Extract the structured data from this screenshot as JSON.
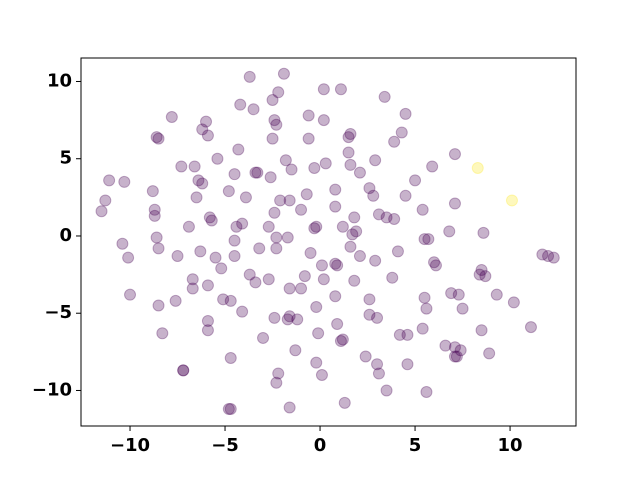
{
  "chart_data": {
    "type": "scatter",
    "xlim": [
      -12.58,
      13.47
    ],
    "ylim": [
      -12.3,
      11.52
    ],
    "xticks": [
      {
        "value": -10,
        "label": "−10"
      },
      {
        "value": -5,
        "label": "−5"
      },
      0,
      5,
      10
    ],
    "yticks": [
      {
        "value": -10,
        "label": "−10"
      },
      {
        "value": -5,
        "label": "−5"
      },
      0,
      5,
      10
    ],
    "opacity": 0.3,
    "series": [
      {
        "color": "#440154",
        "x": [
          -3.7,
          -1.9,
          -2.2,
          -4.2,
          -3.5,
          -2.5,
          0.2,
          1.1,
          3.4,
          -7.8,
          -6.0,
          -2.4,
          -2.3,
          -0.6,
          0.2,
          4.5,
          -6.2,
          -5.9,
          -8.6,
          -8.5,
          -2.5,
          -0.6,
          1.5,
          1.6,
          4.3,
          3.9,
          -4.3,
          1.5,
          7.1,
          -5.4,
          -1.8,
          2.9,
          5.9,
          0.3,
          -7.3,
          -6.6,
          -1.5,
          1.6,
          2.1,
          -0.3,
          -4.5,
          -3.4,
          -3.3,
          -11.1,
          -10.3,
          -6.4,
          -6.2,
          -2.6,
          5.0,
          2.6,
          -8.8,
          -4.8,
          0.8,
          2.8,
          -6.5,
          -2.1,
          -1.6,
          -0.7,
          4.5,
          -11.3,
          -3.9,
          7.1,
          0.8,
          -8.7,
          -8.7,
          -11.5,
          -2.4,
          -1.0,
          3.1,
          -5.8,
          -5.7,
          3.5,
          3.9,
          5.4,
          1.8,
          -4.1,
          -6.9,
          -4.4,
          -2.7,
          -0.3,
          -0.2,
          1.2,
          1.7,
          1.9,
          6.8,
          8.6,
          -8.6,
          -4.5,
          -2.3,
          -1.7,
          5.5,
          5.7,
          -10.4,
          -8.5,
          -6.3,
          -3.2,
          -2.3,
          -0.5,
          1.6,
          0.8,
          0.9,
          4.1,
          -10.1,
          -7.5,
          -5.5,
          -4.5,
          2.1,
          2.9,
          6.0,
          6.1,
          11.7,
          12.0,
          12.3,
          0.1,
          -5.2,
          -3.7,
          -6.7,
          0.2,
          1.8,
          -2.7,
          -0.8,
          -3.4,
          3.8,
          8.5,
          8.7,
          8.4,
          -5.9,
          -6.7,
          -1.6,
          -1.0,
          -10.0,
          0.8,
          6.9,
          7.3,
          9.3,
          -7.6,
          -5.1,
          -4.7,
          2.6,
          5.5,
          -8.5,
          -0.2,
          5.6,
          7.5,
          10.2,
          -4.1,
          2.6,
          3.0,
          -2.4,
          -1.6,
          -1.7,
          -1.2,
          -5.9,
          0.9,
          -8.3,
          -5.9,
          -0.1,
          -3.0,
          1.2,
          1.1,
          4.2,
          4.6,
          5.4,
          8.5,
          11.1,
          6.6,
          7.1,
          7.4,
          7.1,
          7.2,
          -1.3,
          8.9,
          2.4,
          -7.2,
          -7.2,
          -4.7,
          -0.2,
          3.0,
          4.6,
          -2.2,
          0.1,
          3.1,
          -2.3,
          3.5,
          5.6,
          1.3,
          -4.8,
          -4.7,
          -1.6
        ],
        "values": [
          10.3,
          10.5,
          9.3,
          8.5,
          8.2,
          8.8,
          9.5,
          9.5,
          9.0,
          7.7,
          7.4,
          7.5,
          7.2,
          7.8,
          7.5,
          7.9,
          6.9,
          6.5,
          6.4,
          6.3,
          6.3,
          6.3,
          6.4,
          6.6,
          6.7,
          6.1,
          5.6,
          5.4,
          5.3,
          5.0,
          4.9,
          4.9,
          4.5,
          4.7,
          4.5,
          4.5,
          4.3,
          4.6,
          4.1,
          4.4,
          4.0,
          4.1,
          4.1,
          3.6,
          3.5,
          3.6,
          3.4,
          3.8,
          3.6,
          3.1,
          2.9,
          2.9,
          3.0,
          2.6,
          2.5,
          2.3,
          2.3,
          2.7,
          2.6,
          2.3,
          2.5,
          2.1,
          1.9,
          1.7,
          1.3,
          1.6,
          1.5,
          1.7,
          1.4,
          1.2,
          1.0,
          1.2,
          1.1,
          1.7,
          1.2,
          0.8,
          0.6,
          0.6,
          0.6,
          0.5,
          0.6,
          0.6,
          0.1,
          0.3,
          0.3,
          0.2,
          -0.1,
          -0.3,
          -0.1,
          -0.1,
          -0.2,
          -0.2,
          -0.5,
          -0.8,
          -1.0,
          -0.8,
          -0.8,
          -1.1,
          -0.7,
          -1.8,
          -1.9,
          -1.0,
          -1.4,
          -1.3,
          -1.4,
          -1.3,
          -1.3,
          -1.6,
          -1.7,
          -1.9,
          -1.2,
          -1.3,
          -1.4,
          -1.9,
          -2.1,
          -2.5,
          -2.8,
          -2.8,
          -2.9,
          -2.8,
          -2.6,
          -3.0,
          -2.7,
          -2.2,
          -2.6,
          -2.5,
          -3.2,
          -3.4,
          -3.4,
          -3.4,
          -3.8,
          -3.9,
          -3.7,
          -3.8,
          -3.8,
          -4.2,
          -4.1,
          -4.2,
          -4.1,
          -4.0,
          -4.5,
          -4.6,
          -4.7,
          -4.7,
          -4.3,
          -4.9,
          -5.1,
          -5.3,
          -5.3,
          -5.2,
          -5.4,
          -5.4,
          -5.5,
          -5.7,
          -6.3,
          -6.1,
          -6.3,
          -6.6,
          -6.7,
          -6.8,
          -6.4,
          -6.4,
          -6.0,
          -6.1,
          -5.9,
          -7.1,
          -7.2,
          -7.4,
          -7.8,
          -7.8,
          -7.4,
          -7.6,
          -7.8,
          -8.7,
          -8.7,
          -7.9,
          -8.2,
          -8.3,
          -8.3,
          -8.9,
          -9.0,
          -8.9,
          -9.5,
          -10.0,
          -10.1,
          -10.8,
          -11.2,
          -11.2,
          -11.1
        ]
      },
      {
        "color": "#fde725",
        "x": [
          8.3,
          10.1
        ],
        "values": [
          4.4,
          2.3
        ]
      }
    ]
  }
}
